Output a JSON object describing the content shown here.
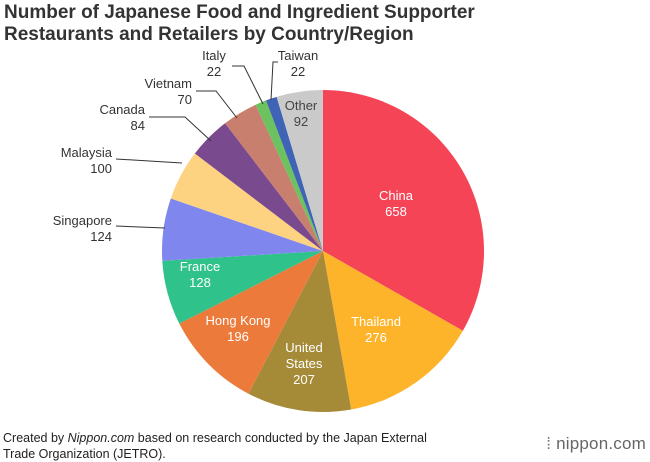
{
  "title": {
    "line1": "Number of Japanese Food and Ingredient Supporter",
    "line2": "Restaurants and Retailers by Country/Region"
  },
  "footer": {
    "prefix": "Created by ",
    "brand": "Nippon.com",
    "suffix_line1": " based on research conducted by the Japan External",
    "line2": "Trade Organization (JETRO)."
  },
  "logo": {
    "dots": "⁞",
    "text": "nippon.com"
  },
  "chart_data": {
    "type": "pie",
    "title": "Number of Japanese Food and Ingredient Supporter Restaurants and Retailers by Country/Region",
    "slices": [
      {
        "label": "China",
        "value": 658,
        "color": "#f44456"
      },
      {
        "label": "Thailand",
        "value": 276,
        "color": "#fdb42b"
      },
      {
        "label": "United States",
        "value": 207,
        "color": "#a58b37"
      },
      {
        "label": "Hong Kong",
        "value": 196,
        "color": "#ec7a3b"
      },
      {
        "label": "France",
        "value": 128,
        "color": "#2fc28a"
      },
      {
        "label": "Singapore",
        "value": 124,
        "color": "#7f87ee"
      },
      {
        "label": "Malaysia",
        "value": 100,
        "color": "#fdd281"
      },
      {
        "label": "Canada",
        "value": 84,
        "color": "#7a4a8e"
      },
      {
        "label": "Vietnam",
        "value": 70,
        "color": "#c87f6e"
      },
      {
        "label": "Italy",
        "value": 22,
        "color": "#6cc25e"
      },
      {
        "label": "Taiwan",
        "value": 22,
        "color": "#3f64b6"
      },
      {
        "label": "Other",
        "value": 92,
        "color": "#cacaca"
      }
    ]
  }
}
